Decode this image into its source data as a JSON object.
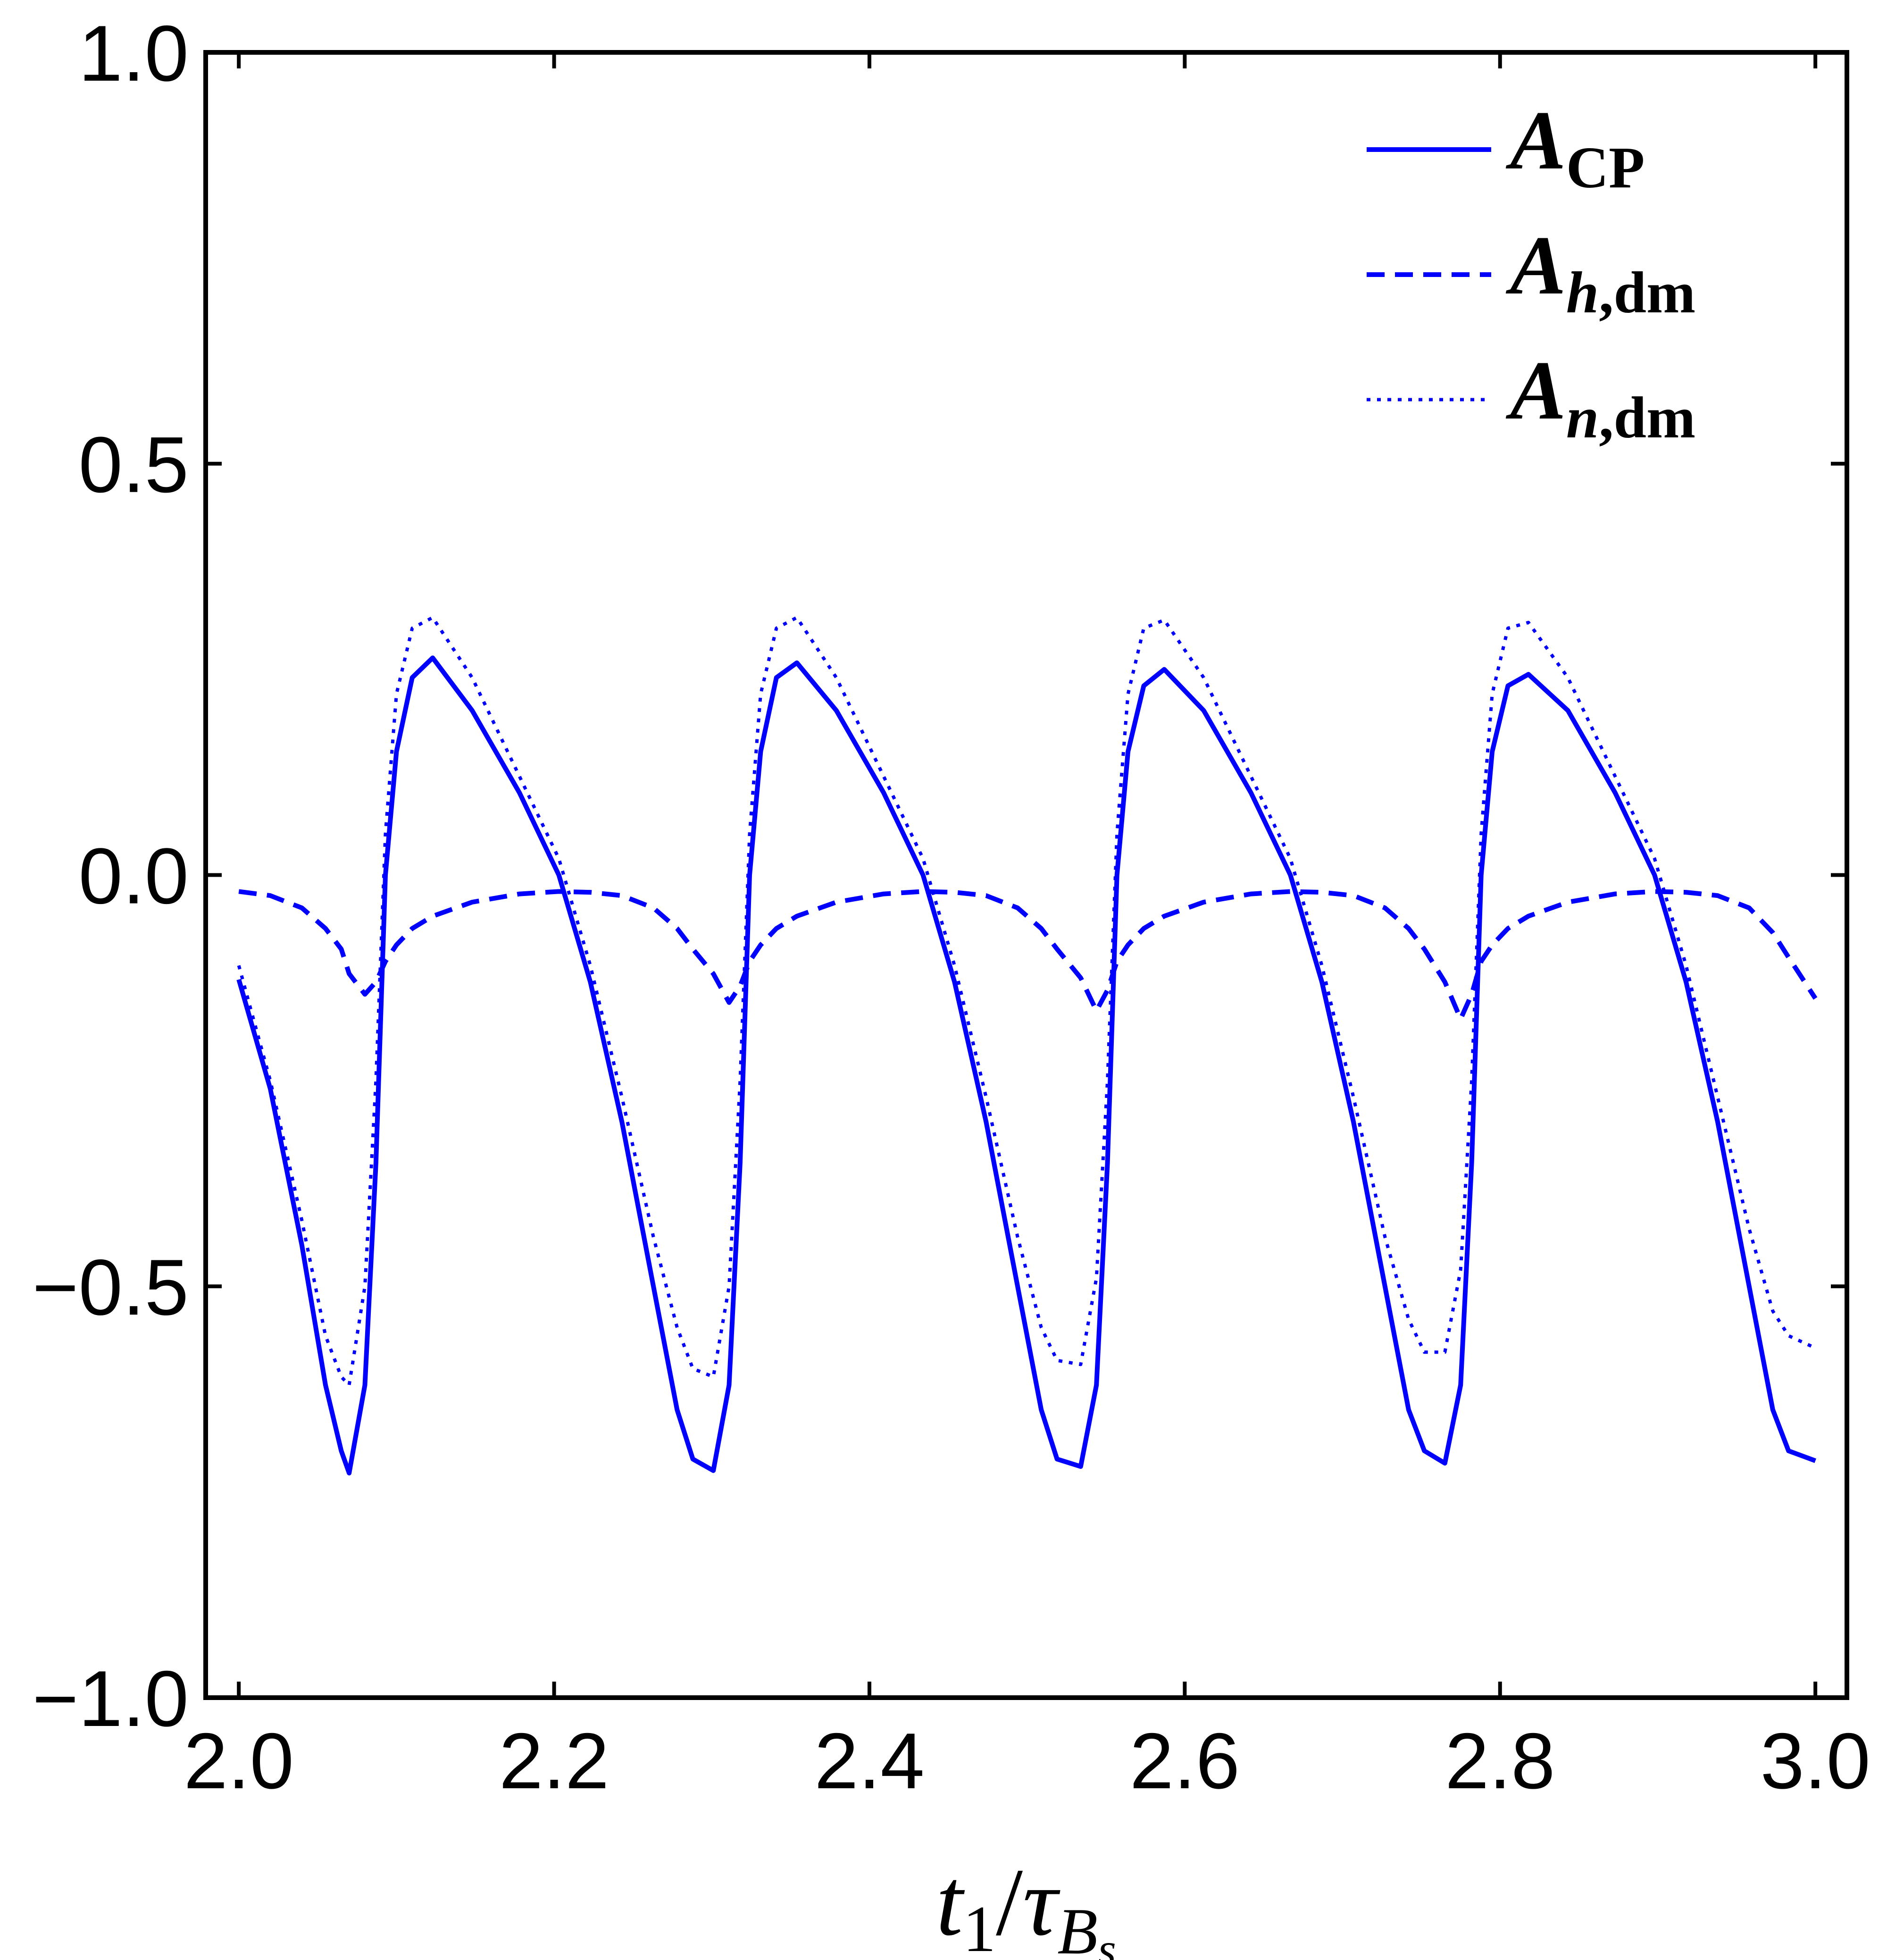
{
  "chart_data": {
    "type": "line",
    "x_label": [
      "t",
      "1",
      "/",
      "τ",
      "B",
      "s"
    ],
    "xlim": [
      1.979,
      3.02
    ],
    "ylim": [
      -1,
      1
    ],
    "xticks": [
      {
        "value": 2,
        "label": "2.0"
      },
      {
        "value": 2.2,
        "label": "2.2"
      },
      {
        "value": 2.4,
        "label": "2.4"
      },
      {
        "value": 2.6,
        "label": "2.6"
      },
      {
        "value": 2.8,
        "label": "2.8"
      },
      {
        "value": 3,
        "label": "3.0"
      }
    ],
    "yticks": [
      {
        "value": -1,
        "label": "−1.0"
      },
      {
        "value": -0.5,
        "label": "−0.5"
      },
      {
        "value": 0,
        "label": "0.0"
      },
      {
        "value": 0.5,
        "label": "0.5"
      },
      {
        "value": 1,
        "label": "1.0"
      }
    ],
    "legend": "upper right",
    "x": [
      2.0,
      2.02,
      2.04,
      2.055,
      2.065,
      2.07,
      2.08,
      2.087,
      2.093,
      2.1,
      2.11,
      2.123,
      2.148,
      2.178,
      2.203,
      2.223,
      2.243,
      2.263,
      2.278,
      2.288,
      2.301,
      2.311,
      2.318,
      2.324,
      2.331,
      2.341,
      2.354,
      2.379,
      2.409,
      2.434,
      2.454,
      2.474,
      2.494,
      2.509,
      2.519,
      2.534,
      2.544,
      2.551,
      2.557,
      2.564,
      2.574,
      2.587,
      2.612,
      2.642,
      2.667,
      2.687,
      2.707,
      2.727,
      2.742,
      2.752,
      2.765,
      2.775,
      2.782,
      2.788,
      2.795,
      2.805,
      2.818,
      2.843,
      2.873,
      2.898,
      2.918,
      2.938,
      2.958,
      2.973,
      2.983,
      3.0
    ],
    "series": [
      {
        "name": [
          "A",
          "CP"
        ],
        "color": "#0000ff",
        "style": "solid",
        "values": [
          -0.127,
          -0.26,
          -0.45,
          -0.62,
          -0.7,
          -0.727,
          -0.62,
          -0.35,
          0,
          0.15,
          0.24,
          0.264,
          0.2,
          0.1,
          0,
          -0.13,
          -0.3,
          -0.5,
          -0.65,
          -0.71,
          -0.724,
          -0.62,
          -0.35,
          0,
          0.15,
          0.24,
          0.258,
          0.2,
          0.1,
          0,
          -0.13,
          -0.3,
          -0.5,
          -0.65,
          -0.71,
          -0.719,
          -0.62,
          -0.35,
          0,
          0.15,
          0.23,
          0.25,
          0.2,
          0.1,
          0,
          -0.13,
          -0.3,
          -0.5,
          -0.65,
          -0.7,
          -0.715,
          -0.62,
          -0.35,
          0,
          0.15,
          0.23,
          0.244,
          0.2,
          0.1,
          0,
          -0.13,
          -0.3,
          -0.5,
          -0.65,
          -0.7,
          -0.712
        ]
      },
      {
        "name": [
          "A",
          "h",
          ",dm"
        ],
        "color": "#0000ff",
        "style": "dashed",
        "values": [
          -0.02,
          -0.025,
          -0.04,
          -0.065,
          -0.09,
          -0.12,
          -0.145,
          -0.13,
          -0.105,
          -0.085,
          -0.065,
          -0.05,
          -0.033,
          -0.023,
          -0.02,
          -0.021,
          -0.025,
          -0.04,
          -0.065,
          -0.09,
          -0.12,
          -0.155,
          -0.135,
          -0.105,
          -0.085,
          -0.065,
          -0.05,
          -0.033,
          -0.023,
          -0.02,
          -0.021,
          -0.025,
          -0.04,
          -0.065,
          -0.09,
          -0.125,
          -0.165,
          -0.14,
          -0.105,
          -0.085,
          -0.065,
          -0.05,
          -0.033,
          -0.023,
          -0.02,
          -0.021,
          -0.025,
          -0.04,
          -0.065,
          -0.09,
          -0.13,
          -0.175,
          -0.145,
          -0.105,
          -0.085,
          -0.065,
          -0.05,
          -0.033,
          -0.023,
          -0.02,
          -0.021,
          -0.025,
          -0.04,
          -0.07,
          -0.1,
          -0.15
        ]
      },
      {
        "name": [
          "A",
          "n",
          ",dm"
        ],
        "color": "#0000ff",
        "style": "dotted",
        "values": [
          -0.11,
          -0.25,
          -0.42,
          -0.56,
          -0.61,
          -0.62,
          -0.5,
          -0.25,
          0.05,
          0.22,
          0.3,
          0.313,
          0.24,
          0.12,
          0.02,
          -0.11,
          -0.27,
          -0.44,
          -0.55,
          -0.6,
          -0.61,
          -0.5,
          -0.25,
          0.05,
          0.22,
          0.3,
          0.313,
          0.24,
          0.12,
          0.02,
          -0.11,
          -0.27,
          -0.44,
          -0.55,
          -0.59,
          -0.595,
          -0.49,
          -0.25,
          0.05,
          0.22,
          0.3,
          0.31,
          0.24,
          0.12,
          0.02,
          -0.11,
          -0.27,
          -0.44,
          -0.54,
          -0.58,
          -0.58,
          -0.48,
          -0.25,
          0.05,
          0.22,
          0.3,
          0.307,
          0.24,
          0.12,
          0.02,
          -0.11,
          -0.27,
          -0.43,
          -0.53,
          -0.56,
          -0.575
        ]
      }
    ]
  }
}
